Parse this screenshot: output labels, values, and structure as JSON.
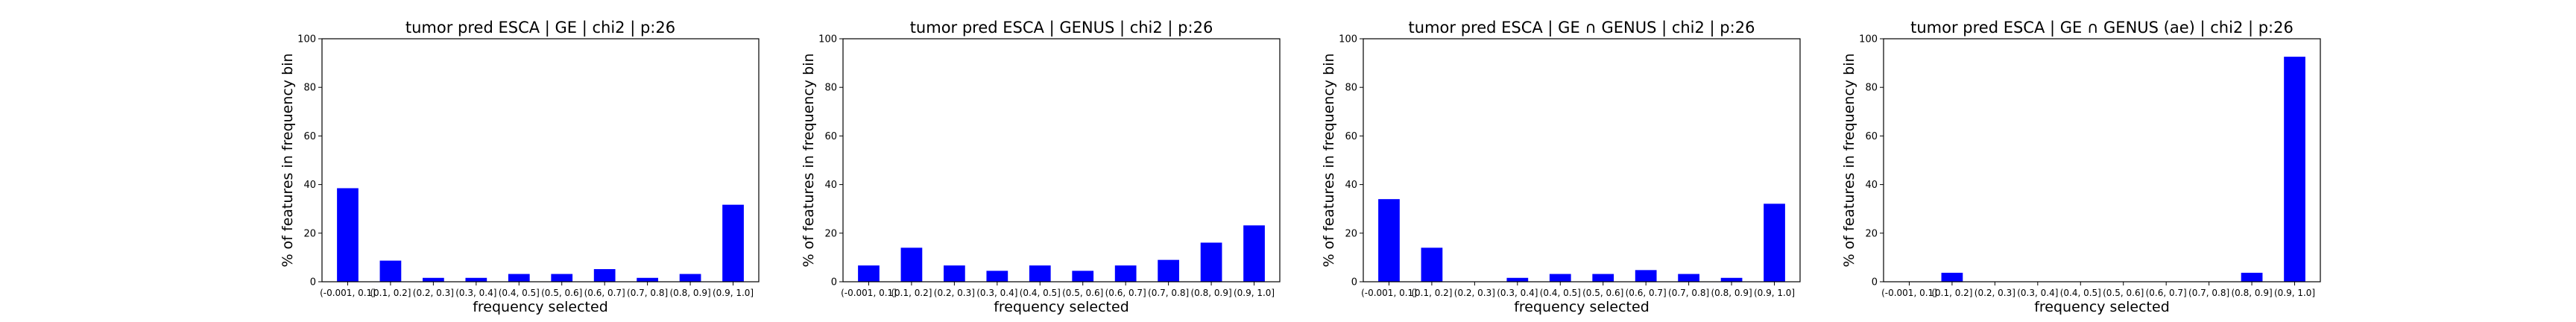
{
  "chart_data": [
    {
      "type": "bar",
      "title": "tumor pred ESCA | GE | chi2 | p:26",
      "xlabel": "frequency selected",
      "ylabel": "% of features in frequency bin",
      "ylim": [
        0,
        100
      ],
      "yticks": [
        0,
        20,
        40,
        60,
        80,
        100
      ],
      "categories": [
        "(-0.001, 0.1]",
        "(0.1, 0.2]",
        "(0.2, 0.3]",
        "(0.3, 0.4]",
        "(0.4, 0.5]",
        "(0.5, 0.6]",
        "(0.6, 0.7]",
        "(0.7, 0.8]",
        "(0.8, 0.9]",
        "(0.9, 1.0]"
      ],
      "values": [
        38.5,
        8.7,
        1.6,
        1.6,
        3.2,
        3.2,
        5.2,
        1.6,
        3.2,
        31.7
      ],
      "color": "#0000ff",
      "grid": false
    },
    {
      "type": "bar",
      "title": "tumor pred ESCA | GENUS | chi2 | p:26",
      "xlabel": "frequency selected",
      "ylabel": "% of features in frequency bin",
      "ylim": [
        0,
        100
      ],
      "yticks": [
        0,
        20,
        40,
        60,
        80,
        100
      ],
      "categories": [
        "(-0.001, 0.1]",
        "(0.1, 0.2]",
        "(0.2, 0.3]",
        "(0.3, 0.4]",
        "(0.4, 0.5]",
        "(0.5, 0.6]",
        "(0.6, 0.7]",
        "(0.7, 0.8]",
        "(0.8, 0.9]",
        "(0.9, 1.0]"
      ],
      "values": [
        6.7,
        14.0,
        6.7,
        4.5,
        6.7,
        4.5,
        6.7,
        9.0,
        16.1,
        23.2
      ],
      "color": "#0000ff",
      "grid": false
    },
    {
      "type": "bar",
      "title": "tumor pred ESCA | GE ∩ GENUS | chi2 | p:26",
      "xlabel": "frequency selected",
      "ylabel": "% of features in frequency bin",
      "ylim": [
        0,
        100
      ],
      "yticks": [
        0,
        20,
        40,
        60,
        80,
        100
      ],
      "categories": [
        "(-0.001, 0.1]",
        "(0.1, 0.2]",
        "(0.2, 0.3]",
        "(0.3, 0.4]",
        "(0.4, 0.5]",
        "(0.5, 0.6]",
        "(0.6, 0.7]",
        "(0.7, 0.8]",
        "(0.8, 0.9]",
        "(0.9, 1.0]"
      ],
      "values": [
        34.0,
        14.0,
        0,
        1.6,
        3.2,
        3.2,
        4.8,
        3.2,
        1.6,
        32.1
      ],
      "color": "#0000ff",
      "grid": false
    },
    {
      "type": "bar",
      "title": "tumor pred ESCA | GE ∩ GENUS (ae) | chi2 | p:26",
      "xlabel": "frequency selected",
      "ylabel": "% of features in frequency bin",
      "ylim": [
        0,
        100
      ],
      "yticks": [
        0,
        20,
        40,
        60,
        80,
        100
      ],
      "categories": [
        "(-0.001, 0.1]",
        "(0.1, 0.2]",
        "(0.2, 0.3]",
        "(0.3, 0.4]",
        "(0.4, 0.5]",
        "(0.5, 0.6]",
        "(0.6, 0.7]",
        "(0.7, 0.8]",
        "(0.8, 0.9]",
        "(0.9, 1.0]"
      ],
      "values": [
        0,
        3.7,
        0,
        0,
        0,
        0,
        0,
        0,
        3.7,
        92.6
      ],
      "color": "#0000ff",
      "grid": false
    }
  ]
}
